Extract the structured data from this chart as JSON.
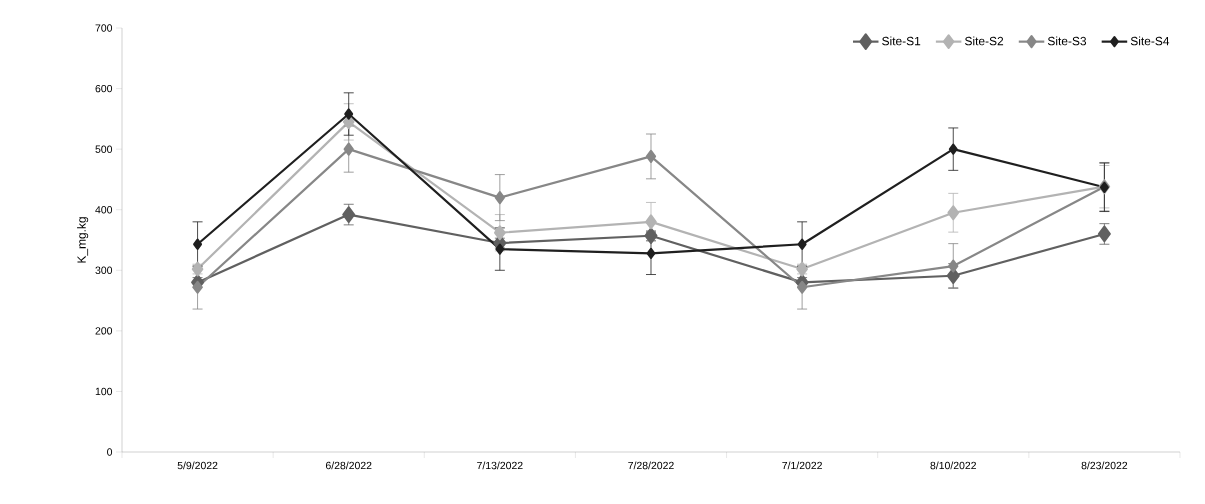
{
  "chart_data": {
    "type": "line",
    "ylabel": "K_mg.kg",
    "categories": [
      "5/9/2022",
      "6/28/2022",
      "7/13/2022",
      "7/28/2022",
      "7/1/2022",
      "8/10/2022",
      "8/23/2022"
    ],
    "series": [
      {
        "name": "Site-S1",
        "color": "#606060",
        "values": [
          280,
          392,
          345,
          357,
          280,
          291,
          360
        ],
        "errors": [
          8,
          17,
          8,
          8,
          8,
          20,
          17
        ]
      },
      {
        "name": "Site-S2",
        "color": "#b3b3b3",
        "values": [
          302,
          545,
          362,
          380,
          302,
          395,
          438
        ],
        "errors": [
          8,
          30,
          30,
          32,
          8,
          32,
          35
        ]
      },
      {
        "name": "Site-S3",
        "color": "#878787",
        "values": [
          272,
          500,
          420,
          488,
          272,
          307,
          438
        ],
        "errors": [
          36,
          38,
          38,
          37,
          36,
          37,
          40
        ]
      },
      {
        "name": "Site-S4",
        "color": "#1f1f1f",
        "values": [
          343,
          558,
          335,
          328,
          343,
          500,
          437
        ],
        "errors": [
          37,
          35,
          35,
          35,
          37,
          35,
          40
        ]
      }
    ],
    "ylim": [
      0,
      700
    ],
    "yticks": [
      0,
      100,
      200,
      300,
      400,
      500,
      600,
      700
    ],
    "legend": "top right",
    "marker": "diamond",
    "line_style": "solid",
    "grid": false
  }
}
